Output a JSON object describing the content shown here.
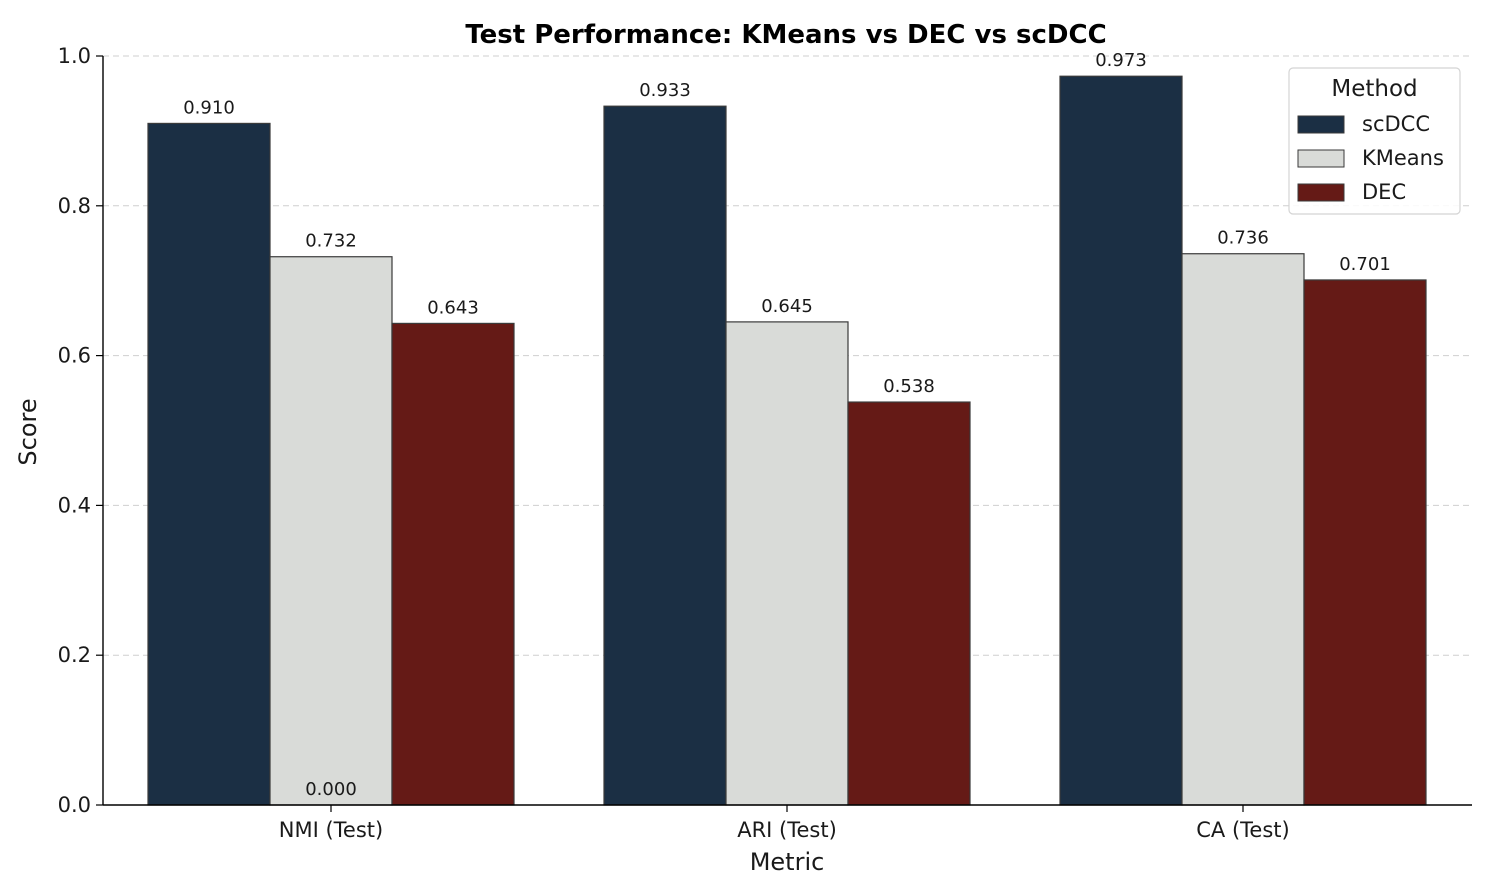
{
  "chart_data": {
    "type": "bar",
    "title": "Test Performance: KMeans vs DEC vs scDCC",
    "xlabel": "Metric",
    "ylabel": "Score",
    "ylim": [
      0,
      1.0
    ],
    "yticks": [
      0.0,
      0.2,
      0.4,
      0.6,
      0.8,
      1.0
    ],
    "ytick_labels": [
      "0.0",
      "0.2",
      "0.4",
      "0.6",
      "0.8",
      "1.0"
    ],
    "grid": "horizontal-dashed",
    "categories": [
      "NMI (Test)",
      "ARI (Test)",
      "CA (Test)"
    ],
    "series": [
      {
        "name": "scDCC",
        "values": [
          0.91,
          0.933,
          0.973
        ],
        "labels": [
          "0.910",
          "0.933",
          "0.973"
        ],
        "color": "#1b2f44"
      },
      {
        "name": "KMeans",
        "values": [
          0.732,
          0.645,
          0.736
        ],
        "labels": [
          "0.732",
          "0.645",
          "0.736"
        ],
        "color": "#d9dbd8"
      },
      {
        "name": "DEC",
        "values": [
          0.643,
          0.538,
          0.701
        ],
        "labels": [
          "0.643",
          "0.538",
          "0.701"
        ],
        "color": "#651a16"
      }
    ],
    "extra_annotations": [
      {
        "text": "0.000",
        "category": "NMI (Test)",
        "value": 0.0
      }
    ],
    "legend": {
      "title": "Method",
      "placement": "top-right"
    }
  }
}
